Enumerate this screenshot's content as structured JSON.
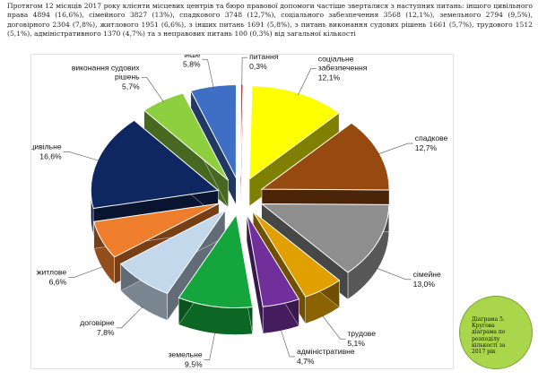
{
  "intro_text": "Протягом 12 місяців 2017 року клієнти місцевих центрів та бюро правової допомоги частіше зверталися з наступних питань: іншого цивільного права 4894 (16,6%), сімейного 3827 (13%), спадкового 3748 (12,7%), соціального забезпечення 3568 (12,1%), земельного 2794 (9,5%), договірного 2304 (7,8%), житлового 1951 (6,6%), з інших питань 1691 (5,8%), з питань виконання судових рішень 1661 (5,7%), трудового 1512 (5,1%), адміністративного 1370 (4,7%) та з неправових питань 100 (0,3%) від загальної кількості",
  "caption": "Діаграма 5. Кругова діаграма по розподілу кількості за 2017 рік",
  "chart_data": {
    "type": "pie",
    "style": "3d-exploded",
    "slices": [
      {
        "name": "соціальне забезпечення",
        "pct_label": "12,1%",
        "value": 12.1,
        "color": "#ffff00"
      },
      {
        "name": "спадкове",
        "pct_label": "12,7%",
        "value": 12.7,
        "color": "#974a10"
      },
      {
        "name": "сімейне",
        "pct_label": "13,0%",
        "value": 13.0,
        "color": "#8e8e8e"
      },
      {
        "name": "трудове",
        "pct_label": "5,1%",
        "value": 5.1,
        "color": "#e0a000"
      },
      {
        "name": "адміністративне",
        "pct_label": "4,7%",
        "value": 4.7,
        "color": "#702f9a"
      },
      {
        "name": "земельне",
        "pct_label": "9,5%",
        "value": 9.5,
        "color": "#14a63c"
      },
      {
        "name": "договірне",
        "pct_label": "7,8%",
        "value": 7.8,
        "color": "#c4d8ec"
      },
      {
        "name": "житлове",
        "pct_label": "6,6%",
        "value": 6.6,
        "color": "#ee7d2c"
      },
      {
        "name": "інше цивільне",
        "pct_label": "16,6%",
        "value": 16.6,
        "color": "#0f2760"
      },
      {
        "name": "виконання судових рішень",
        "pct_label": "5,7%",
        "value": 5.7,
        "color": "#8dcf3f"
      },
      {
        "name": "інше",
        "pct_label": "5,8%",
        "value": 5.8,
        "color": "#3f6fc4"
      },
      {
        "name": "неправове питання",
        "pct_label": "0,3%",
        "value": 0.3,
        "color": "#e8303a"
      }
    ]
  }
}
